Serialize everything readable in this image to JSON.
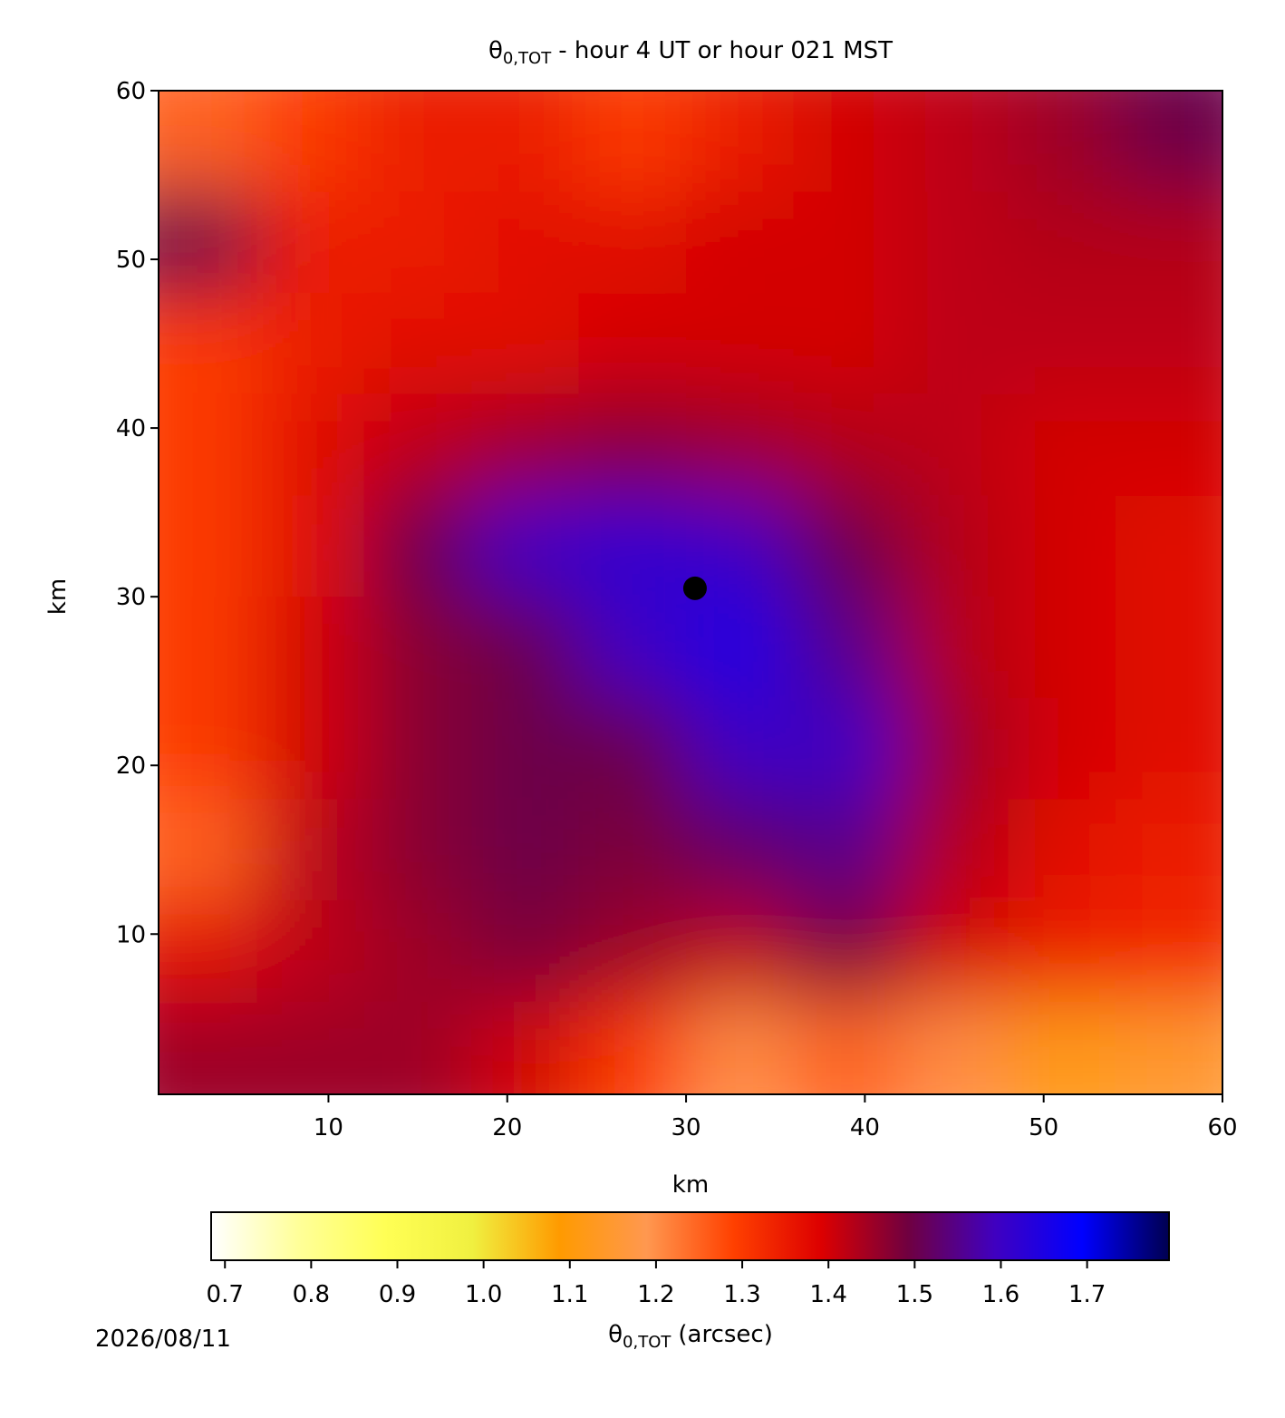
{
  "chart_data": {
    "type": "heatmap",
    "title": {
      "symbol": "θ",
      "subscript": "0,TOT",
      "text": "- hour 4 UT or hour 021 MST"
    },
    "xlabel": "km",
    "ylabel": "km",
    "xlim": [
      0.5,
      60
    ],
    "ylim": [
      0.5,
      60
    ],
    "xticks": [
      10,
      20,
      30,
      40,
      50,
      60
    ],
    "yticks": [
      10,
      20,
      30,
      40,
      50,
      60
    ],
    "x": [
      3,
      9,
      15,
      21,
      27,
      33,
      39,
      45,
      51,
      57
    ],
    "y": [
      57,
      51,
      45,
      39,
      33,
      27,
      21,
      15,
      9,
      3
    ],
    "z": [
      [
        1.25,
        1.3,
        1.35,
        1.35,
        1.3,
        1.35,
        1.4,
        1.42,
        1.45,
        1.5
      ],
      [
        1.5,
        1.35,
        1.35,
        1.38,
        1.38,
        1.4,
        1.4,
        1.42,
        1.43,
        1.43
      ],
      [
        1.3,
        1.35,
        1.38,
        1.38,
        1.4,
        1.4,
        1.4,
        1.42,
        1.42,
        1.42
      ],
      [
        1.3,
        1.38,
        1.42,
        1.45,
        1.47,
        1.45,
        1.43,
        1.42,
        1.4,
        1.4
      ],
      [
        1.3,
        1.38,
        1.5,
        1.6,
        1.62,
        1.6,
        1.5,
        1.43,
        1.4,
        1.38
      ],
      [
        1.3,
        1.4,
        1.47,
        1.5,
        1.6,
        1.65,
        1.55,
        1.43,
        1.4,
        1.38
      ],
      [
        1.3,
        1.4,
        1.47,
        1.5,
        1.5,
        1.6,
        1.6,
        1.45,
        1.4,
        1.38
      ],
      [
        1.25,
        1.42,
        1.47,
        1.5,
        1.48,
        1.52,
        1.55,
        1.43,
        1.38,
        1.35
      ],
      [
        1.38,
        1.42,
        1.45,
        1.48,
        1.45,
        1.42,
        1.48,
        1.4,
        1.35,
        1.33
      ],
      [
        1.45,
        1.45,
        1.45,
        1.4,
        1.3,
        1.2,
        1.25,
        1.2,
        1.1,
        1.15
      ]
    ],
    "marker": {
      "x": 30.5,
      "y": 30.5,
      "color": "#000000"
    },
    "colormap": [
      "#ffffff",
      "#ffff99",
      "#ffff55",
      "#f0f040",
      "#ff9a00",
      "#ff9850",
      "#ff4000",
      "#dd0000",
      "#700040",
      "#4000c0",
      "#0000ff",
      "#000050"
    ],
    "clim": [
      0.684,
      1.795
    ],
    "cticks": [
      0.7,
      0.8,
      0.9,
      {
        "value": 1,
        "label": "1.0"
      },
      1.1,
      1.2,
      1.3,
      1.4,
      1.5,
      1.6,
      1.7
    ],
    "clabel": {
      "symbol": "θ",
      "subscript": "0,TOT",
      "text": "(arcsec)"
    },
    "date": "2026/08/11"
  }
}
